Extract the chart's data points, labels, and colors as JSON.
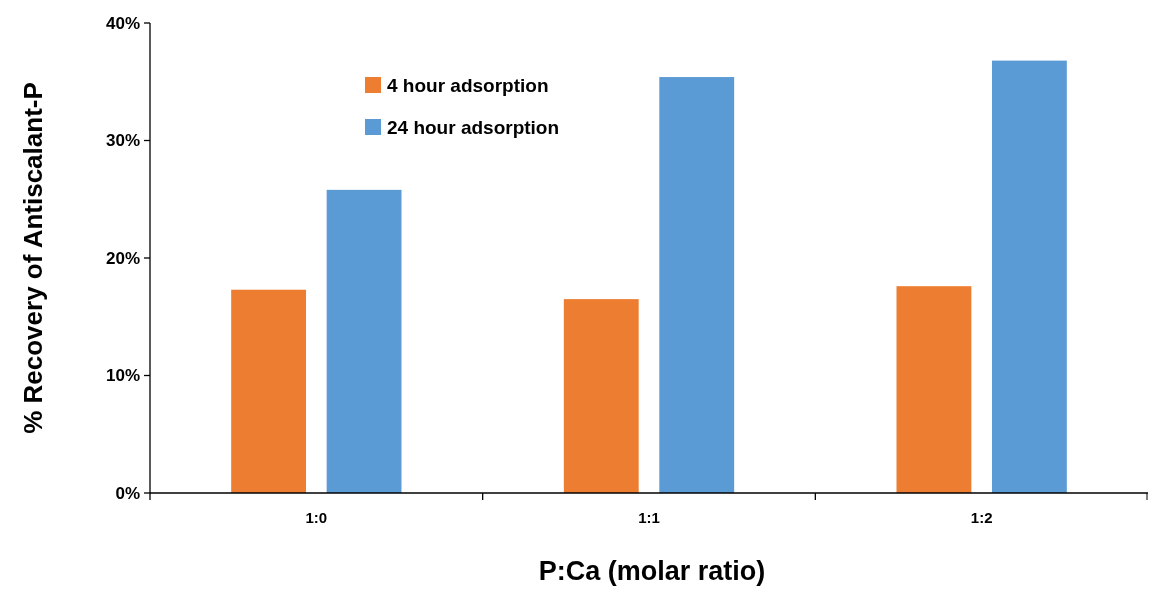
{
  "chart_data": {
    "type": "bar",
    "xlabel": "P:Ca (molar ratio)",
    "ylabel": "% Recovery of Antiscalant-P",
    "categories": [
      "1:0",
      "1:1",
      "1:2"
    ],
    "series": [
      {
        "name": "4 hour adsorption",
        "color": "#ed7d31",
        "values": [
          17.3,
          16.5,
          17.6
        ]
      },
      {
        "name": "24 hour adsorption",
        "color": "#5b9bd5",
        "values": [
          25.8,
          35.4,
          36.8
        ]
      }
    ],
    "ylim": [
      0,
      40
    ],
    "yticks": [
      {
        "value": 0,
        "label": "0%"
      },
      {
        "value": 10,
        "label": "10%"
      },
      {
        "value": 20,
        "label": "20%"
      },
      {
        "value": 30,
        "label": "30%"
      },
      {
        "value": 40,
        "label": "40%"
      }
    ],
    "grid": false,
    "legend": "top left"
  }
}
